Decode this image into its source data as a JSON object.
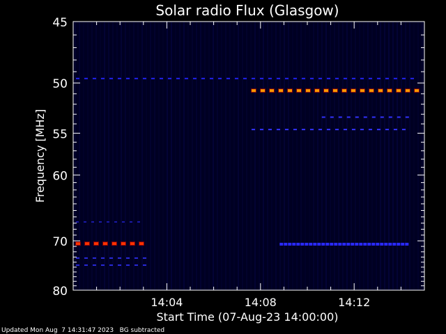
{
  "chart_data": {
    "type": "heatmap",
    "title": "Solar radio Flux (Glasgow)",
    "xlabel": "Start Time (07-Aug-23 14:00:00)",
    "ylabel": "Frequency [MHz]",
    "x_unit": "minutes after 14:00:00",
    "xlim": [
      0,
      15
    ],
    "ylim": [
      45,
      80
    ],
    "y_scale": "reciprocal",
    "x_ticks": [
      {
        "value": 4,
        "label": "14:04"
      },
      {
        "value": 8,
        "label": "14:08"
      },
      {
        "value": 12,
        "label": "14:12"
      }
    ],
    "y_ticks": [
      {
        "value": 45,
        "label": "45"
      },
      {
        "value": 50,
        "label": "50"
      },
      {
        "value": 55,
        "label": "55"
      },
      {
        "value": 60,
        "label": "60"
      },
      {
        "value": 70,
        "label": "70"
      },
      {
        "value": 80,
        "label": "80"
      }
    ],
    "background_color": "#000022",
    "emission_lines": [
      {
        "freq": 49.6,
        "t_start": 0,
        "t_end": 15,
        "level": "weak",
        "color": "#2222ee"
      },
      {
        "freq": 50.7,
        "t_start": 7.5,
        "t_end": 15,
        "level": "strong",
        "color": "#ff9900"
      },
      {
        "freq": 53.3,
        "t_start": 10.5,
        "t_end": 14.6,
        "level": "weak",
        "color": "#3333ff"
      },
      {
        "freq": 54.6,
        "t_start": 7.5,
        "t_end": 14.6,
        "level": "weak",
        "color": "#3333ff"
      },
      {
        "freq": 66.8,
        "t_start": 0,
        "t_end": 3.3,
        "level": "faint",
        "color": "#1a1aaa"
      },
      {
        "freq": 70.5,
        "t_start": 0,
        "t_end": 3.3,
        "level": "strong",
        "color": "#ff3300"
      },
      {
        "freq": 70.6,
        "t_start": 8.7,
        "t_end": 14.6,
        "level": "medium",
        "color": "#2a2aff"
      },
      {
        "freq": 73.2,
        "t_start": 0,
        "t_end": 3.3,
        "level": "weak",
        "color": "#2a2add"
      },
      {
        "freq": 74.6,
        "t_start": 0,
        "t_end": 3.3,
        "level": "weak",
        "color": "#2a2add"
      }
    ]
  },
  "footer": {
    "updated": "Updated Mon Aug  7 14:31:47 2023",
    "note": "BG subtracted"
  }
}
